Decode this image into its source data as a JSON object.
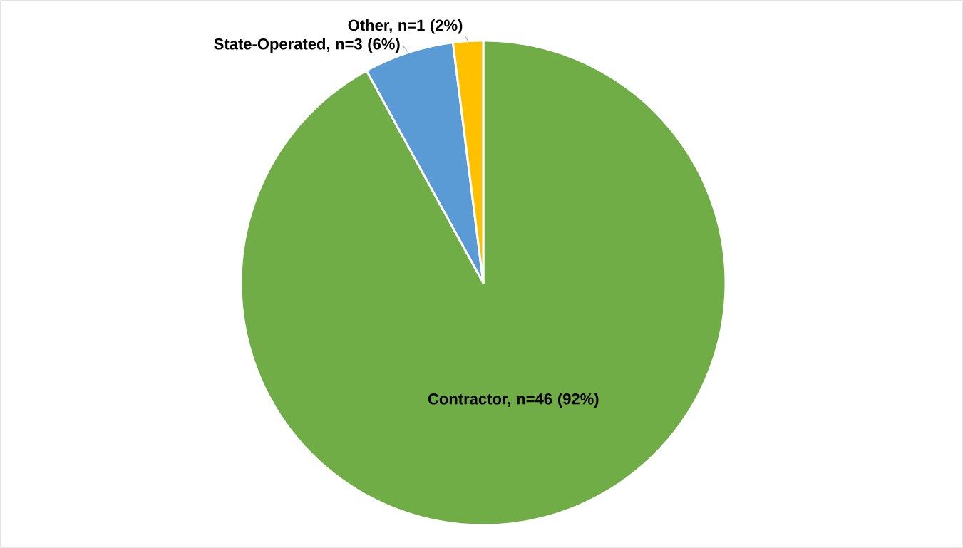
{
  "chart_data": {
    "type": "pie",
    "categories": [
      "Contractor, n=46 (92%)",
      "State-Operated, n=3 (6%)",
      "Other, n=1 (2%)"
    ],
    "values": [
      92,
      6,
      2
    ],
    "colors": [
      "#70ad47",
      "#5b9bd5",
      "#ffc000"
    ]
  }
}
